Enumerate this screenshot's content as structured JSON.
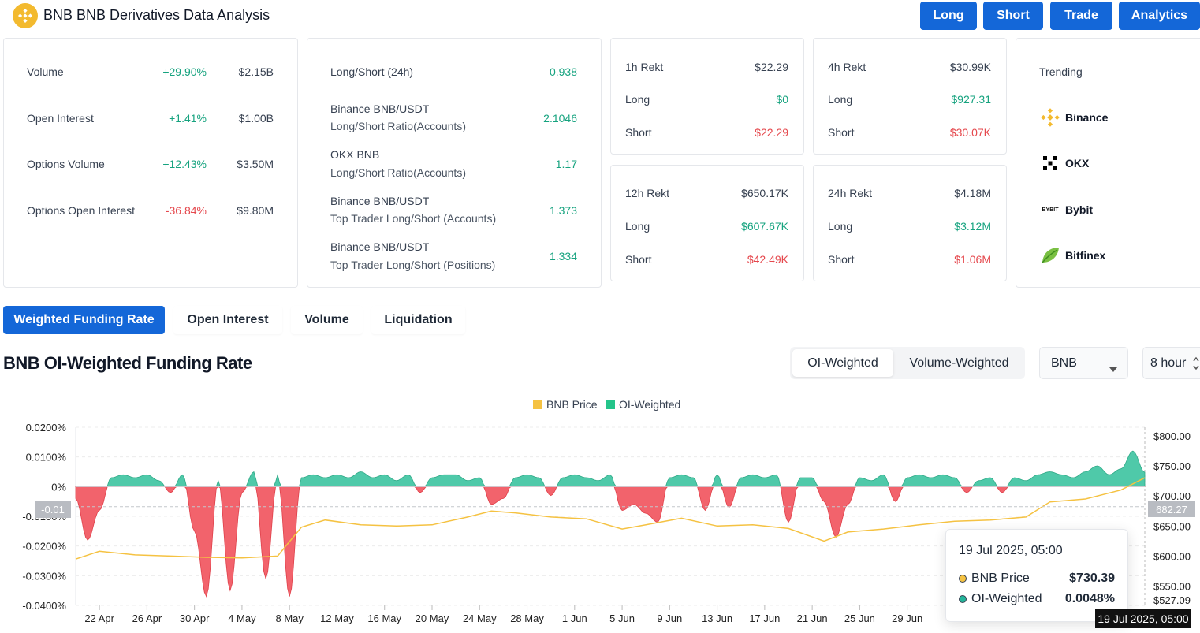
{
  "header": {
    "title": "BNB BNB Derivatives Data Analysis",
    "buttons": [
      "Long",
      "Short",
      "Trade",
      "Analytics"
    ]
  },
  "stats": {
    "rows": [
      {
        "label": "Volume",
        "change": "+29.90%",
        "value": "$2.15B",
        "positive": true
      },
      {
        "label": "Open Interest",
        "change": "+1.41%",
        "value": "$1.00B",
        "positive": true
      },
      {
        "label": "Options Volume",
        "change": "+12.43%",
        "value": "$3.50M",
        "positive": true
      },
      {
        "label": "Options Open Interest",
        "change": "-36.84%",
        "value": "$9.80M",
        "positive": false
      }
    ]
  },
  "ratios": {
    "rows": [
      {
        "line1": "Long/Short (24h)",
        "line2": "",
        "value": "0.938"
      },
      {
        "line1": "Binance BNB/USDT",
        "line2": "Long/Short Ratio(Accounts)",
        "value": "2.1046"
      },
      {
        "line1": "OKX BNB",
        "line2": "Long/Short Ratio(Accounts)",
        "value": "1.17"
      },
      {
        "line1": "Binance BNB/USDT",
        "line2": "Top Trader Long/Short (Accounts)",
        "value": "1.373"
      },
      {
        "line1": "Binance BNB/USDT",
        "line2": "Top Trader Long/Short (Positions)",
        "value": "1.334"
      }
    ]
  },
  "rekt": [
    {
      "title": "1h Rekt",
      "total": "$22.29",
      "long_label": "Long",
      "long": "$0",
      "short_label": "Short",
      "short": "$22.29"
    },
    {
      "title": "4h Rekt",
      "total": "$30.99K",
      "long_label": "Long",
      "long": "$927.31",
      "short_label": "Short",
      "short": "$30.07K"
    },
    {
      "title": "12h Rekt",
      "total": "$650.17K",
      "long_label": "Long",
      "long": "$607.67K",
      "short_label": "Short",
      "short": "$42.49K"
    },
    {
      "title": "24h Rekt",
      "total": "$4.18M",
      "long_label": "Long",
      "long": "$3.12M",
      "short_label": "Short",
      "short": "$1.06M"
    }
  ],
  "trending": {
    "title": "Trending",
    "items": [
      {
        "name": "Binance",
        "icon": "binance-icon"
      },
      {
        "name": "OKX",
        "icon": "okx-icon"
      },
      {
        "name": "Bybit",
        "icon": "bybit-icon"
      },
      {
        "name": "Bitfinex",
        "icon": "bitfinex-icon"
      }
    ],
    "bybit_logo_text": "BYBIT"
  },
  "tabs": [
    "Weighted Funding Rate",
    "Open Interest",
    "Volume",
    "Liquidation"
  ],
  "chart_section": {
    "title": "BNB OI-Weighted Funding Rate",
    "toggle": [
      "OI-Weighted",
      "Volume-Weighted"
    ],
    "symbol": "BNB",
    "interval": "8 hour"
  },
  "colors": {
    "accent": "#1467d8",
    "positive": "#16a37f",
    "negative": "#e5484d",
    "price_line": "#f5c242",
    "oi_fill": "#4fc9a9",
    "neg_fill": "#f2636c"
  },
  "chart_data": {
    "type": "area",
    "legend": [
      "BNB Price",
      "OI-Weighted"
    ],
    "x_ticks": [
      "22 Apr",
      "26 Apr",
      "30 Apr",
      "4 May",
      "8 May",
      "12 May",
      "16 May",
      "20 May",
      "24 May",
      "28 May",
      "1 Jun",
      "5 Jun",
      "9 Jun",
      "13 Jun",
      "17 Jun",
      "21 Jun",
      "25 Jun",
      "29 Jun"
    ],
    "y_left_ticks": [
      "0.0200%",
      "0.0100%",
      "0%",
      "-0.0100%",
      "-0.0200%",
      "-0.0300%",
      "-0.0400%"
    ],
    "y_left_ticks_values": [
      0.02,
      0.01,
      0,
      -0.01,
      -0.02,
      -0.03,
      -0.04
    ],
    "y_right_ticks": [
      "$800.00",
      "$750.00",
      "$700.00",
      "$650.00",
      "$600.00",
      "$550.00",
      "$527.09"
    ],
    "y_right_ticks_values": [
      800,
      750,
      700,
      650,
      600,
      550,
      527.09
    ],
    "ylim_left": [
      -0.04,
      0.02
    ],
    "ylim_right": [
      527.09,
      800
    ],
    "x_start": "2025-04-20",
    "x_end": "2025-07-19",
    "funding_series": {
      "name": "OI-Weighted",
      "points": [
        [
          "2025-04-20",
          -0.004
        ],
        [
          "2025-04-21",
          -0.018
        ],
        [
          "2025-04-22",
          -0.008
        ],
        [
          "2025-04-23",
          0.003
        ],
        [
          "2025-04-24",
          0.004
        ],
        [
          "2025-04-25",
          0.003
        ],
        [
          "2025-04-26",
          0.004
        ],
        [
          "2025-04-27",
          0.002
        ],
        [
          "2025-04-28",
          -0.002
        ],
        [
          "2025-04-29",
          0.004
        ],
        [
          "2025-04-30",
          -0.015
        ],
        [
          "2025-05-01",
          -0.037
        ],
        [
          "2025-05-02",
          0.002
        ],
        [
          "2025-05-03",
          -0.035
        ],
        [
          "2025-05-04",
          -0.002
        ],
        [
          "2025-05-05",
          0.005
        ],
        [
          "2025-05-06",
          -0.031
        ],
        [
          "2025-05-07",
          0.004
        ],
        [
          "2025-05-08",
          -0.037
        ],
        [
          "2025-05-09",
          0.003
        ],
        [
          "2025-05-10",
          0.004
        ],
        [
          "2025-05-11",
          0.003
        ],
        [
          "2025-05-12",
          0.004
        ],
        [
          "2025-05-13",
          0.003
        ],
        [
          "2025-05-14",
          0.005
        ],
        [
          "2025-05-15",
          0.003
        ],
        [
          "2025-05-16",
          0.004
        ],
        [
          "2025-05-17",
          0.002
        ],
        [
          "2025-05-18",
          0.004
        ],
        [
          "2025-05-19",
          -0.002
        ],
        [
          "2025-05-20",
          0.003
        ],
        [
          "2025-05-21",
          0.004
        ],
        [
          "2025-05-22",
          0.004
        ],
        [
          "2025-05-23",
          0.002
        ],
        [
          "2025-05-24",
          0.003
        ],
        [
          "2025-05-25",
          -0.006
        ],
        [
          "2025-05-26",
          -0.004
        ],
        [
          "2025-05-27",
          0.003
        ],
        [
          "2025-05-28",
          0.004
        ],
        [
          "2025-05-29",
          0.003
        ],
        [
          "2025-05-30",
          -0.003
        ],
        [
          "2025-05-31",
          0.003
        ],
        [
          "2025-06-01",
          0.004
        ],
        [
          "2025-06-02",
          0.003
        ],
        [
          "2025-06-03",
          0.002
        ],
        [
          "2025-06-04",
          0.004
        ],
        [
          "2025-06-05",
          -0.008
        ],
        [
          "2025-06-06",
          -0.006
        ],
        [
          "2025-06-07",
          -0.009
        ],
        [
          "2025-06-08",
          -0.012
        ],
        [
          "2025-06-09",
          0.003
        ],
        [
          "2025-06-10",
          0.004
        ],
        [
          "2025-06-11",
          0.003
        ],
        [
          "2025-06-12",
          -0.008
        ],
        [
          "2025-06-13",
          0.004
        ],
        [
          "2025-06-14",
          -0.007
        ],
        [
          "2025-06-15",
          0.003
        ],
        [
          "2025-06-16",
          0.004
        ],
        [
          "2025-06-17",
          0.003
        ],
        [
          "2025-06-18",
          0.004
        ],
        [
          "2025-06-19",
          -0.012
        ],
        [
          "2025-06-20",
          0.003
        ],
        [
          "2025-06-21",
          0.003
        ],
        [
          "2025-06-22",
          -0.005
        ],
        [
          "2025-06-23",
          -0.017
        ],
        [
          "2025-06-24",
          -0.006
        ],
        [
          "2025-06-25",
          0.003
        ],
        [
          "2025-06-26",
          0.002
        ],
        [
          "2025-06-27",
          0.004
        ],
        [
          "2025-06-28",
          -0.005
        ],
        [
          "2025-06-29",
          0.003
        ],
        [
          "2025-06-30",
          0.004
        ],
        [
          "2025-07-01",
          0.003
        ],
        [
          "2025-07-02",
          0.004
        ],
        [
          "2025-07-03",
          0.003
        ],
        [
          "2025-07-04",
          -0.002
        ],
        [
          "2025-07-05",
          0.002
        ],
        [
          "2025-07-06",
          0.003
        ],
        [
          "2025-07-07",
          -0.002
        ],
        [
          "2025-07-08",
          0.003
        ],
        [
          "2025-07-09",
          0.002
        ],
        [
          "2025-07-10",
          0.004
        ],
        [
          "2025-07-11",
          0.005
        ],
        [
          "2025-07-12",
          0.004
        ],
        [
          "2025-07-13",
          0.003
        ],
        [
          "2025-07-14",
          0.005
        ],
        [
          "2025-07-15",
          0.007
        ],
        [
          "2025-07-16",
          0.004
        ],
        [
          "2025-07-17",
          0.006
        ],
        [
          "2025-07-18",
          0.012
        ],
        [
          "2025-07-19",
          0.0048
        ]
      ]
    },
    "price_series": {
      "name": "BNB Price",
      "points": [
        [
          "2025-04-20",
          595
        ],
        [
          "2025-04-22",
          608
        ],
        [
          "2025-04-25",
          602
        ],
        [
          "2025-04-28",
          600
        ],
        [
          "2025-05-01",
          598
        ],
        [
          "2025-05-04",
          597
        ],
        [
          "2025-05-07",
          600
        ],
        [
          "2025-05-09",
          648
        ],
        [
          "2025-05-11",
          660
        ],
        [
          "2025-05-14",
          652
        ],
        [
          "2025-05-17",
          650
        ],
        [
          "2025-05-20",
          652
        ],
        [
          "2025-05-23",
          665
        ],
        [
          "2025-05-25",
          675
        ],
        [
          "2025-05-27",
          672
        ],
        [
          "2025-05-30",
          665
        ],
        [
          "2025-06-02",
          662
        ],
        [
          "2025-06-05",
          645
        ],
        [
          "2025-06-07",
          652
        ],
        [
          "2025-06-10",
          663
        ],
        [
          "2025-06-13",
          650
        ],
        [
          "2025-06-16",
          652
        ],
        [
          "2025-06-19",
          646
        ],
        [
          "2025-06-22",
          625
        ],
        [
          "2025-06-24",
          640
        ],
        [
          "2025-06-27",
          645
        ],
        [
          "2025-06-30",
          652
        ],
        [
          "2025-07-03",
          658
        ],
        [
          "2025-07-06",
          660
        ],
        [
          "2025-07-09",
          665
        ],
        [
          "2025-07-11",
          690
        ],
        [
          "2025-07-14",
          695
        ],
        [
          "2025-07-17",
          710
        ],
        [
          "2025-07-19",
          730.39
        ]
      ]
    },
    "crosshair": {
      "date_label": "19 Jul 2025, 05:00",
      "price_label": "682.27",
      "left_label": "-0.01"
    }
  },
  "tooltip": {
    "title": "19 Jul 2025, 05:00",
    "rows": [
      {
        "label": "BNB Price",
        "value": "$730.39"
      },
      {
        "label": "OI-Weighted",
        "value": "0.0048%"
      }
    ]
  },
  "footer": {
    "crosshair_date": "19 Jul 2025, 05:00"
  }
}
